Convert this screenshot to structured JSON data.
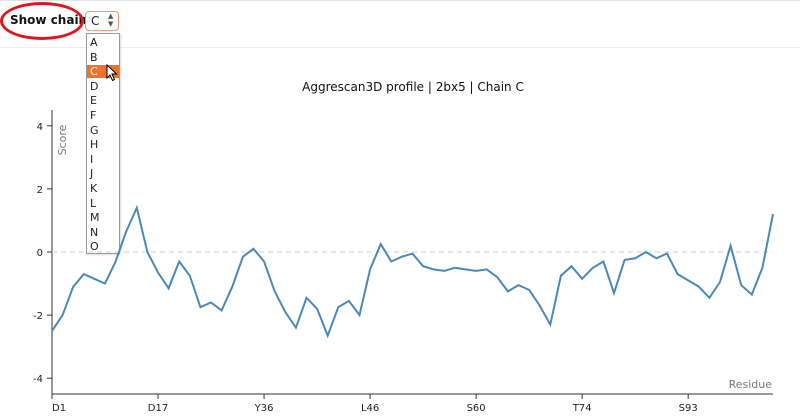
{
  "controls": {
    "show_chain_label": "Show chain:",
    "selected_chain": "C",
    "chain_options": [
      "A",
      "B",
      "C",
      "D",
      "E",
      "F",
      "G",
      "H",
      "I",
      "J",
      "K",
      "L",
      "M",
      "N",
      "O"
    ]
  },
  "chart_data": {
    "type": "line",
    "title": "Aggrescan3D profile | 2bx5 | Chain C",
    "xlabel": "Residue",
    "ylabel": "Score",
    "ylim": [
      -4.5,
      4.5
    ],
    "yticks": [
      -4,
      -2,
      0,
      2,
      4
    ],
    "xtick_labels": [
      "D1",
      "D17",
      "Y36",
      "L46",
      "S60",
      "T74",
      "S93"
    ],
    "xtick_indices": [
      0,
      10,
      20,
      30,
      40,
      50,
      60
    ],
    "reference_line": 0,
    "line_color": "#4a88b8",
    "values": [
      -2.5,
      -2.0,
      -1.1,
      -0.7,
      -0.85,
      -1.0,
      -0.3,
      0.65,
      1.4,
      0.0,
      -0.65,
      -1.15,
      -0.3,
      -0.75,
      -1.75,
      -1.6,
      -1.85,
      -1.1,
      -0.15,
      0.1,
      -0.3,
      -1.25,
      -1.9,
      -2.4,
      -1.45,
      -1.8,
      -2.65,
      -1.75,
      -1.55,
      -2.0,
      -0.55,
      0.25,
      -0.3,
      -0.15,
      -0.05,
      -0.45,
      -0.55,
      -0.6,
      -0.5,
      -0.55,
      -0.6,
      -0.55,
      -0.8,
      -1.25,
      -1.05,
      -1.2,
      -1.7,
      -2.3,
      -0.75,
      -0.45,
      -0.85,
      -0.5,
      -0.3,
      -1.3,
      -0.25,
      -0.2,
      0.0,
      -0.2,
      -0.05,
      -0.7,
      -0.9,
      -1.1,
      -1.45,
      -0.95,
      0.2,
      -1.05,
      -1.35,
      -0.5,
      1.2
    ]
  }
}
